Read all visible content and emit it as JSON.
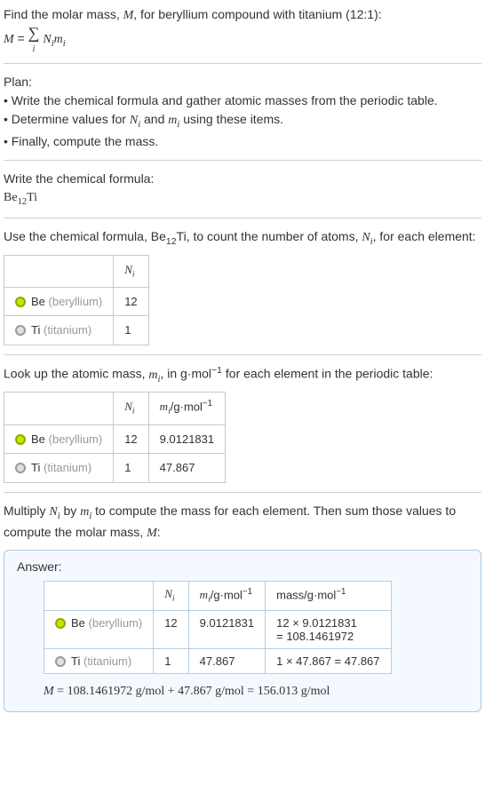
{
  "intro": {
    "line1_pre": "Find the molar mass, ",
    "line1_M": "M",
    "line1_post": ", for beryllium compound with titanium (12:1):",
    "eq_lhs": "M",
    "eq_eq": " = ",
    "eq_Ni": "N",
    "eq_mi": "m",
    "sigma_idx": "i"
  },
  "plan": {
    "title": "Plan:",
    "b1_pre": "• Write the chemical formula and gather atomic masses from the periodic table.",
    "b2_pre": "• Determine values for ",
    "b2_N": "N",
    "b2_and": " and ",
    "b2_m": "m",
    "b2_post": " using these items.",
    "b3": "• Finally, compute the mass."
  },
  "writef": {
    "title": "Write the chemical formula:",
    "formula_main": "Be",
    "formula_sub": "12",
    "formula_ti": "Ti"
  },
  "countN": {
    "pre": "Use the chemical formula, Be",
    "sub": "12",
    "mid": "Ti, to count the number of atoms, ",
    "N": "N",
    "post": ", for each element:",
    "hdr_N": "N",
    "rows": [
      {
        "el": "Be",
        "name": "(beryllium)",
        "cls": "be",
        "n": "12"
      },
      {
        "el": "Ti",
        "name": "(titanium)",
        "cls": "ti",
        "n": "1"
      }
    ]
  },
  "atomic": {
    "pre": "Look up the atomic mass, ",
    "m": "m",
    "mid": ", in g·mol",
    "exp": "−1",
    "post": " for each element in the periodic table:",
    "hdr_N": "N",
    "hdr_m": "m",
    "hdr_unit_pre": "/g·mol",
    "hdr_unit_exp": "−1",
    "rows": [
      {
        "el": "Be",
        "name": "(beryllium)",
        "cls": "be",
        "n": "12",
        "m": "9.0121831"
      },
      {
        "el": "Ti",
        "name": "(titanium)",
        "cls": "ti",
        "n": "1",
        "m": "47.867"
      }
    ]
  },
  "multiply": {
    "pre": "Multiply ",
    "N": "N",
    "by": " by ",
    "m": "m",
    "post1": " to compute the mass for each element. Then sum those values to compute the molar mass, ",
    "M": "M",
    "colon": ":"
  },
  "answer": {
    "label": "Answer:",
    "hdr_N": "N",
    "hdr_m": "m",
    "hdr_unit_pre": "/g·mol",
    "hdr_unit_exp": "−1",
    "hdr_mass": "mass/g·mol",
    "rows": [
      {
        "el": "Be",
        "name": "(beryllium)",
        "cls": "be",
        "n": "12",
        "m": "9.0121831",
        "calc1": "12 × 9.0121831",
        "calc2": "= 108.1461972"
      },
      {
        "el": "Ti",
        "name": "(titanium)",
        "cls": "ti",
        "n": "1",
        "m": "47.867",
        "calc1": "1 × 47.867 = 47.867",
        "calc2": ""
      }
    ],
    "final_M": "M",
    "final_eq": " = 108.1461972 g/mol + 47.867 g/mol = 156.013 g/mol"
  },
  "colors": {
    "be_fill": "#c3e600",
    "be_border": "#8fa800",
    "ti_fill": "#e0e0e0",
    "ti_border": "#999999",
    "answer_bg": "#f4f9ff",
    "answer_border": "#a8c8e8"
  }
}
